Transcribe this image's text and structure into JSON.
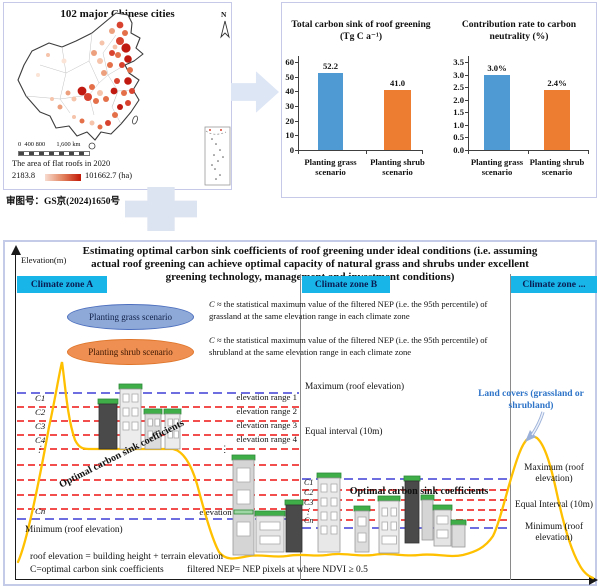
{
  "map_panel": {
    "title": "102 major Chinese cities",
    "compass_label": "N",
    "scale_text": "0  400 800       1,600 km",
    "legend_title": "The area of flat roofs in 2020",
    "legend_min": "2183.8",
    "legend_max": "101662.7 (ha)",
    "approval": "审图号：GS京(2024)1650号"
  },
  "chart_data": [
    {
      "type": "bar",
      "title": "Total carbon sink of roof greening (Tg C a⁻¹)",
      "categories": [
        "Planting grass scenario",
        "Planting shrub scenario"
      ],
      "values": [
        52.2,
        41.0
      ],
      "value_labels": [
        "52.2",
        "41.0"
      ],
      "yticks": [
        "60",
        "50",
        "40",
        "30",
        "20",
        "10",
        "0"
      ],
      "ylim": [
        0,
        60
      ],
      "xlabel": "",
      "ylabel": "",
      "grid": false,
      "legend_position": "none",
      "bar_colors": [
        "#4f9ad3",
        "#ed7d31"
      ]
    },
    {
      "type": "bar",
      "title": "Contribution rate to carbon neutrality  (%)",
      "categories": [
        "Planting grass scenario",
        "Planting shrub scenario"
      ],
      "values": [
        3.0,
        2.4
      ],
      "value_labels": [
        "3.0%",
        "2.4%"
      ],
      "yticks": [
        "3.5",
        "3.0",
        "2.5",
        "2.0",
        "1.5",
        "1.0",
        "0.5",
        "0.0"
      ],
      "ylim": [
        0,
        3.5
      ],
      "xlabel": "",
      "ylabel": "",
      "grid": false,
      "legend_position": "none",
      "bar_colors": [
        "#4f9ad3",
        "#ed7d31"
      ]
    }
  ],
  "diagram": {
    "title_lines": [
      "Estimating optimal carbon sink coefficients of roof greening under ideal conditions (i.e. assuming",
      "actual roof greening can achieve optimal capacity of natural grass and shrubs under excellent",
      "greening technology, management and investment conditions)"
    ],
    "elevation_axis_label": "Elevation(m)",
    "zones": [
      {
        "label": "Climate zone A"
      },
      {
        "label": "Climate zone B"
      },
      {
        "label": "Climate zone ..."
      }
    ],
    "scenarios": [
      {
        "label": "Planting grass scenario"
      },
      {
        "label": "Planting shrub scenario"
      }
    ],
    "definitions": [
      {
        "lead": "C",
        "body": "≈ the statistical maximum value of the filtered NEP (i.e. the 95th percentile) of grassland at the same elevation range in each climate zone"
      },
      {
        "lead": "C",
        "body": "≈ the statistical maximum value of the filtered NEP (i.e. the 95th percentile) of shrubland at the same elevation range in each climate zone"
      }
    ],
    "zoneA": {
      "c_labels": [
        "C1",
        "C2",
        "C3",
        "C4",
        "⋮",
        "Cn"
      ],
      "range_labels": [
        "elevation  range 1",
        "elevation  range 2",
        "elevation  range 3",
        "elevation  range 4"
      ],
      "range_dots": "⋮",
      "range_n_label": "elevation  range n",
      "max_line_label": "Maximum (roof elevation)",
      "interval_label": "Equal interval (10m)",
      "min_line_label": "Minimum (roof elevation)",
      "diagonal_label": "Optimal carbon sink coefficients"
    },
    "zoneB": {
      "c_labels": [
        "C1",
        "C2",
        "C3",
        "⋮",
        "Cn"
      ],
      "coeff_label": "Optimal carbon sink coefficients",
      "max_line_label": "Maximum (roof elevation)",
      "interval_label": "Equal Interval (10m)",
      "min_line_label": "Minimum (roof elevation)"
    },
    "land_cover_note": "Land covers (grassland or shrubland)",
    "footnotes": {
      "line1": "roof elevation = building height + terrain elevation",
      "line2a": "C=optimal carbon sink coefficients",
      "line2b": "filtered NEP= NEP pixels at where NDVI ≥ 0.5"
    }
  },
  "colors": {
    "bar_blue": "#4f9ad3",
    "bar_orange": "#ed7d31",
    "zone_box_cyan": "#18b5e9",
    "red_dash": "#f24e4e",
    "blue_dash": "#6e6ee0",
    "terrain_yellow": "#ffc000",
    "roof_green": "#3fae49",
    "land_cover_text_blue": "#2e74c8"
  }
}
